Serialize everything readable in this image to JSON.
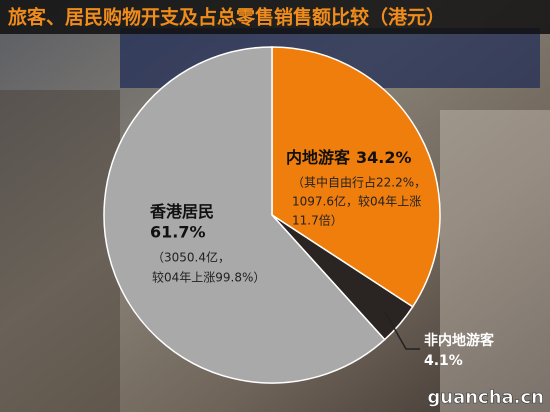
{
  "chart_data": {
    "type": "pie",
    "title": "旅客、居民购物开支及占总零售销售额比较（港元）",
    "categories": [
      "内地游客",
      "非内地游客",
      "香港居民"
    ],
    "values": [
      34.2,
      4.1,
      61.7
    ],
    "value_labels": [
      "34.2%",
      "4.1%",
      "61.7%"
    ],
    "colors": [
      "#f07e0c",
      "#2a2522",
      "#a9a9a9"
    ],
    "annotations": [
      {
        "category": 0,
        "lines": [
          "（其中自由行占22.2%，",
          "1097.6亿，较04年上涨",
          "11.7倍）"
        ]
      },
      {
        "category": 2,
        "lines": [
          "（3050.4亿，",
          "较04年上涨99.8%）"
        ]
      }
    ],
    "watermark": "guancha.cn"
  }
}
